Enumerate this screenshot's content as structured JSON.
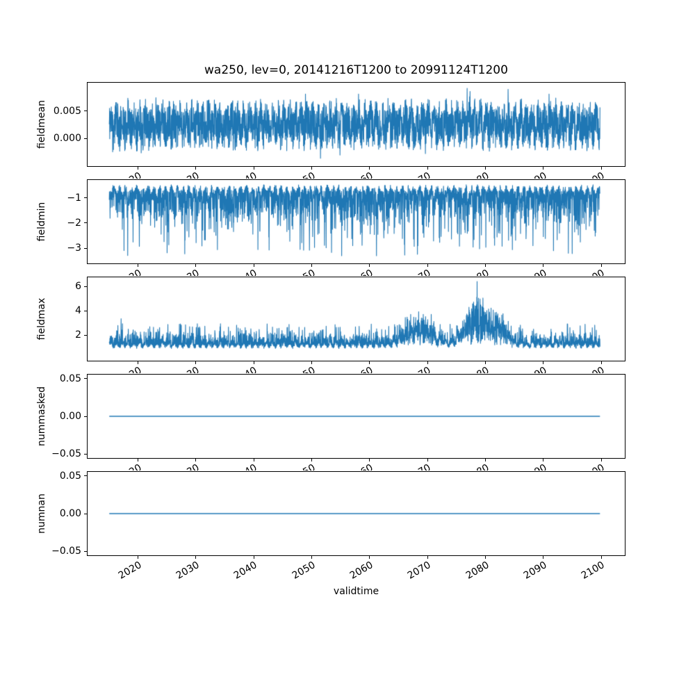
{
  "figure": {
    "title": "wa250, lev=0, 20141216T1200 to 20991124T1200",
    "xlabel": "validtime",
    "line_color": "#1f77b4",
    "background": "#ffffff",
    "text_color": "#000000"
  },
  "x_axis": {
    "label": "validtime",
    "xlim": [
      2011.2,
      2104.2
    ],
    "ticks": [
      2020,
      2030,
      2040,
      2050,
      2060,
      2070,
      2080,
      2090,
      2100
    ],
    "tick_labels": [
      "2020",
      "2030",
      "2040",
      "2050",
      "2060",
      "2070",
      "2080",
      "2090",
      "2100"
    ],
    "data_start": "20141216T1200",
    "data_end": "20991124T1200"
  },
  "chart_data": [
    {
      "type": "line",
      "ylabel": "fieldmean",
      "x_start": 2014.96,
      "x_end": 2099.9,
      "ylim": [
        -0.0052,
        0.0103
      ],
      "yticks": [
        0.005,
        0.0
      ],
      "ytick_labels": [
        "0.005",
        "0.000"
      ],
      "signal": {
        "kind": "noisy-band",
        "baseline": 0.0025,
        "amplitude": 0.0038,
        "seasonal": 0.0012,
        "spike_prob": 0.03,
        "spike_amp": 0.0042,
        "min": -0.0048,
        "max": 0.0097,
        "observed_min": -0.0045,
        "observed_max": 0.0095,
        "description": "dense noisy series oscillating around ~0.0025 for the whole period"
      }
    },
    {
      "type": "line",
      "ylabel": "fieldmin",
      "x_start": 2014.96,
      "x_end": 2099.9,
      "ylim": [
        -3.63,
        -0.26
      ],
      "yticks": [
        -1,
        -2,
        -3
      ],
      "ytick_labels": [
        "−1",
        "−2",
        "−3"
      ],
      "signal": {
        "kind": "noisy-down",
        "ceiling": -0.45,
        "seasonal": 0.25,
        "scale": 0.5,
        "cap": 2.62,
        "min": -3.35,
        "observed_min": -3.35,
        "observed_max": -0.45,
        "description": "dense noisy series mostly between -0.5 and -2.2 with occasional dips to about -3.3"
      }
    },
    {
      "type": "line",
      "ylabel": "fieldmax",
      "x_start": 2014.96,
      "x_end": 2099.9,
      "ylim": [
        -0.17,
        6.8
      ],
      "yticks": [
        6,
        4,
        2
      ],
      "ytick_labels": [
        "6",
        "4",
        "2"
      ],
      "signal": {
        "kind": "noisy-up",
        "floor": 0.85,
        "seasonal": 0.32,
        "scale": 0.38,
        "cap": 1.75,
        "spike_prob": 0.008,
        "spike_amp": 1.2,
        "max": 6.55,
        "bursts": [
          {
            "center": 2068.5,
            "width": 3.0,
            "height": 2.1
          },
          {
            "center": 2078.5,
            "width": 2.4,
            "height": 3.7
          },
          {
            "center": 2082.5,
            "width": 1.8,
            "height": 2.0
          }
        ],
        "observed_min": 0.7,
        "observed_max": 6.5,
        "description": "noisy series mostly 1-2.5 with elevated bursts 2065-2085 peaking near 6.5 around 2078"
      }
    },
    {
      "type": "line",
      "ylabel": "nummasked",
      "x_start": 2014.96,
      "x_end": 2099.9,
      "ylim": [
        -0.0564,
        0.0564
      ],
      "yticks": [
        0.05,
        0.0,
        -0.05
      ],
      "ytick_labels": [
        "0.05",
        "0.00",
        "−0.05"
      ],
      "signal": {
        "kind": "constant",
        "value": 0.0,
        "description": "flat line at exactly 0 for the whole period"
      }
    },
    {
      "type": "line",
      "ylabel": "numnan",
      "x_start": 2014.96,
      "x_end": 2099.9,
      "ylim": [
        -0.0564,
        0.0564
      ],
      "yticks": [
        0.05,
        0.0,
        -0.05
      ],
      "ytick_labels": [
        "0.05",
        "0.00",
        "−0.05"
      ],
      "signal": {
        "kind": "constant",
        "value": 0.0,
        "description": "flat line at exactly 0 for the whole period"
      }
    }
  ]
}
